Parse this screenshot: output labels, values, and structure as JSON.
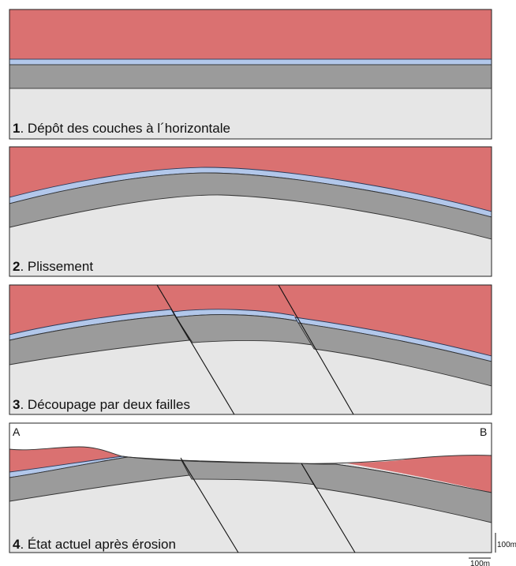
{
  "panels": [
    {
      "number": "1",
      "caption": ". Dépôt des couches à l´horizontale"
    },
    {
      "number": "2",
      "caption": ". Plissement"
    },
    {
      "number": "3",
      "caption": ". Découpage par deux failles"
    },
    {
      "number": "4",
      "caption": ". État actuel après érosion"
    }
  ],
  "profile_labels": {
    "start": "A",
    "end": "B"
  },
  "scale": {
    "vertical": "100m",
    "horizontal": "100m"
  },
  "colors": {
    "top_layer": "#da7171",
    "thin_layer": "#b2c7ea",
    "middle_layer": "#9b9b9b",
    "base_layer": "#e6e6e6"
  }
}
